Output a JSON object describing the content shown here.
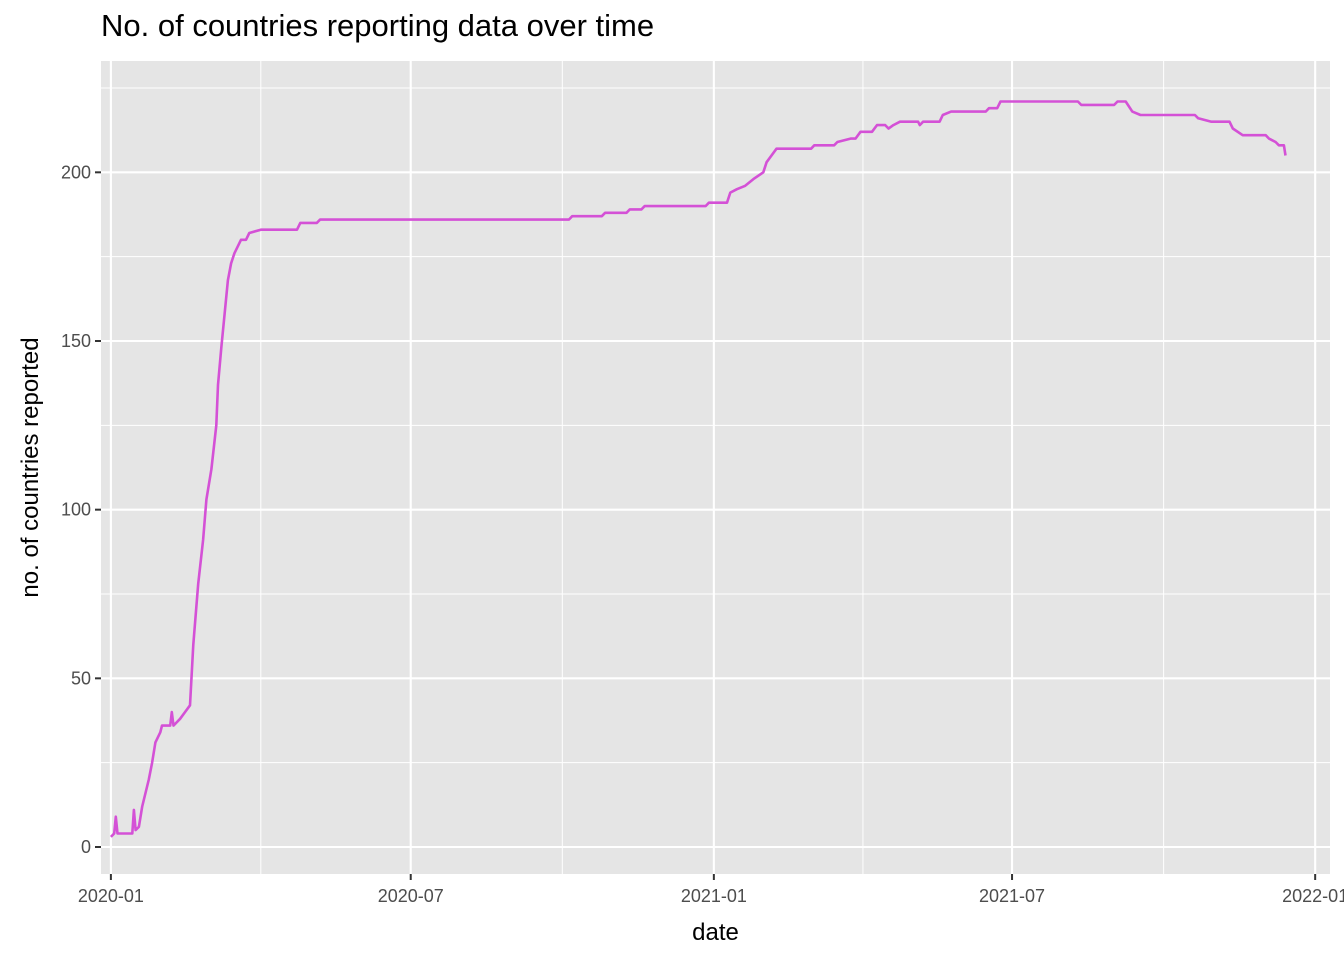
{
  "chart_data": {
    "type": "line",
    "title": "No. of countries reporting data over time",
    "xlabel": "date",
    "ylabel": "no. of countries reported",
    "x_tick_labels": [
      "2020-01",
      "2020-07",
      "2021-01",
      "2021-07",
      "2022-01"
    ],
    "x_tick_dates": [
      "2020-01-01",
      "2020-07-01",
      "2021-01-01",
      "2021-07-01",
      "2022-01-01"
    ],
    "y_ticks": [
      0,
      50,
      100,
      150,
      200
    ],
    "xlim": [
      "2019-12-26",
      "2022-01-10"
    ],
    "ylim": [
      -8,
      233
    ],
    "grid": true,
    "legend": "none",
    "colors": {
      "line": "#D451D6",
      "panel": "#E5E5E5",
      "grid": "#FFFFFF"
    },
    "series": [
      {
        "points": [
          [
            "2020-01-01",
            3
          ],
          [
            "2020-01-03",
            4
          ],
          [
            "2020-01-04",
            9
          ],
          [
            "2020-01-05",
            4
          ],
          [
            "2020-01-14",
            4
          ],
          [
            "2020-01-15",
            11
          ],
          [
            "2020-01-16",
            5
          ],
          [
            "2020-01-18",
            6
          ],
          [
            "2020-01-20",
            12
          ],
          [
            "2020-01-24",
            20
          ],
          [
            "2020-01-26",
            25
          ],
          [
            "2020-01-28",
            31
          ],
          [
            "2020-01-31",
            34
          ],
          [
            "2020-02-01",
            36
          ],
          [
            "2020-02-06",
            36
          ],
          [
            "2020-02-07",
            40
          ],
          [
            "2020-02-08",
            36
          ],
          [
            "2020-02-12",
            38
          ],
          [
            "2020-02-15",
            40
          ],
          [
            "2020-02-18",
            42
          ],
          [
            "2020-02-20",
            60
          ],
          [
            "2020-02-23",
            78
          ],
          [
            "2020-02-26",
            91
          ],
          [
            "2020-02-28",
            103
          ],
          [
            "2020-03-02",
            112
          ],
          [
            "2020-03-05",
            125
          ],
          [
            "2020-03-06",
            137
          ],
          [
            "2020-03-08",
            148
          ],
          [
            "2020-03-10",
            158
          ],
          [
            "2020-03-12",
            168
          ],
          [
            "2020-03-14",
            173
          ],
          [
            "2020-03-16",
            176
          ],
          [
            "2020-03-20",
            180
          ],
          [
            "2020-03-23",
            180
          ],
          [
            "2020-03-25",
            182
          ],
          [
            "2020-04-01",
            183
          ],
          [
            "2020-04-23",
            183
          ],
          [
            "2020-04-25",
            185
          ],
          [
            "2020-05-05",
            185
          ],
          [
            "2020-05-07",
            186
          ],
          [
            "2020-10-05",
            186
          ],
          [
            "2020-10-07",
            187
          ],
          [
            "2020-10-25",
            187
          ],
          [
            "2020-10-27",
            188
          ],
          [
            "2020-11-09",
            188
          ],
          [
            "2020-11-11",
            189
          ],
          [
            "2020-11-18",
            189
          ],
          [
            "2020-11-20",
            190
          ],
          [
            "2020-12-27",
            190
          ],
          [
            "2020-12-29",
            191
          ],
          [
            "2021-01-09",
            191
          ],
          [
            "2021-01-11",
            194
          ],
          [
            "2021-01-15",
            195
          ],
          [
            "2021-01-20",
            196
          ],
          [
            "2021-01-25",
            198
          ],
          [
            "2021-01-31",
            200
          ],
          [
            "2021-02-02",
            203
          ],
          [
            "2021-02-05",
            205
          ],
          [
            "2021-02-08",
            207
          ],
          [
            "2021-03-01",
            207
          ],
          [
            "2021-03-03",
            208
          ],
          [
            "2021-03-15",
            208
          ],
          [
            "2021-03-17",
            209
          ],
          [
            "2021-03-25",
            210
          ],
          [
            "2021-03-28",
            210
          ],
          [
            "2021-03-31",
            212
          ],
          [
            "2021-04-07",
            212
          ],
          [
            "2021-04-10",
            214
          ],
          [
            "2021-04-15",
            214
          ],
          [
            "2021-04-17",
            213
          ],
          [
            "2021-04-20",
            214
          ],
          [
            "2021-04-24",
            215
          ],
          [
            "2021-05-05",
            215
          ],
          [
            "2021-05-06",
            214
          ],
          [
            "2021-05-08",
            215
          ],
          [
            "2021-05-18",
            215
          ],
          [
            "2021-05-20",
            217
          ],
          [
            "2021-05-25",
            218
          ],
          [
            "2021-06-15",
            218
          ],
          [
            "2021-06-17",
            219
          ],
          [
            "2021-06-22",
            219
          ],
          [
            "2021-06-24",
            221
          ],
          [
            "2021-08-10",
            221
          ],
          [
            "2021-08-12",
            220
          ],
          [
            "2021-09-01",
            220
          ],
          [
            "2021-09-03",
            221
          ],
          [
            "2021-09-08",
            221
          ],
          [
            "2021-09-12",
            218
          ],
          [
            "2021-09-17",
            217
          ],
          [
            "2021-10-20",
            217
          ],
          [
            "2021-10-22",
            216
          ],
          [
            "2021-10-30",
            215
          ],
          [
            "2021-11-10",
            215
          ],
          [
            "2021-11-12",
            213
          ],
          [
            "2021-11-18",
            211
          ],
          [
            "2021-12-02",
            211
          ],
          [
            "2021-12-04",
            210
          ],
          [
            "2021-12-08",
            209
          ],
          [
            "2021-12-10",
            208
          ],
          [
            "2021-12-13",
            208
          ],
          [
            "2021-12-14",
            205
          ]
        ]
      }
    ]
  }
}
